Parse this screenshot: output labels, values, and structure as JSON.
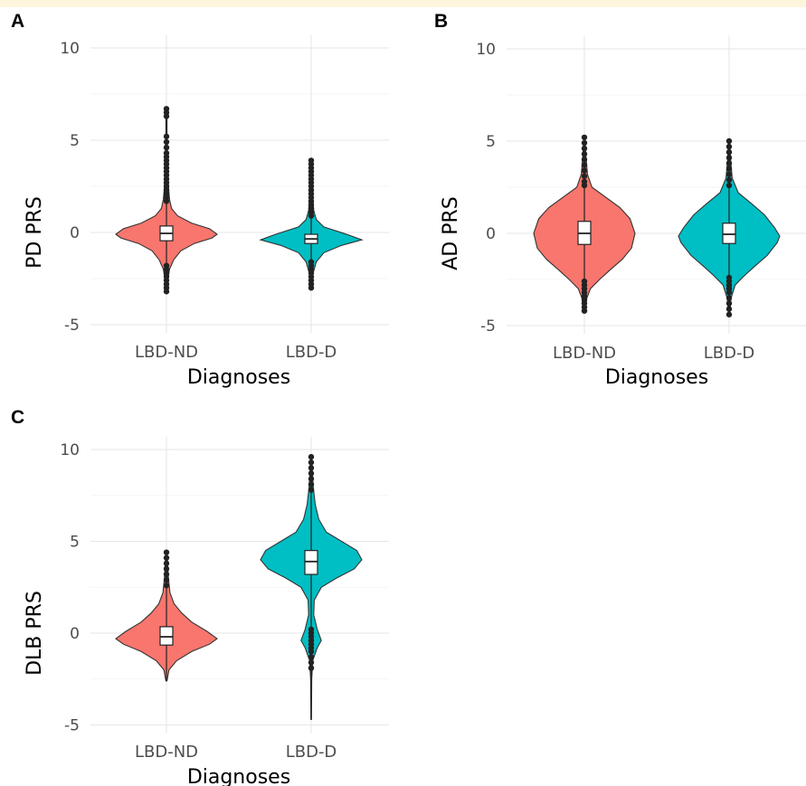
{
  "chart_data": [
    {
      "panel": "A",
      "type": "violin",
      "xlabel": "Diagnoses",
      "ylabel": "PD PRS",
      "ylim": [
        -5,
        10
      ],
      "yticks": [
        -5,
        0,
        5,
        10
      ],
      "grid": true,
      "categories": [
        "LBD-ND",
        "LBD-D"
      ],
      "colors": [
        "#F8766D",
        "#00BFC4"
      ],
      "groups": [
        {
          "name": "LBD-ND",
          "quartiles": [
            -0.45,
            -0.05,
            0.35
          ],
          "whisker_range": [
            -1.6,
            1.5
          ],
          "data_range": [
            -3.2,
            6.7
          ],
          "outliers": [
            6.7,
            6.5,
            6.3,
            5.2,
            4.9,
            4.6,
            4.3,
            4.1,
            3.9,
            3.7,
            3.5,
            3.3,
            3.1,
            2.9,
            2.7,
            2.5,
            2.3,
            2.1,
            1.9,
            1.7,
            -1.8,
            -2.0,
            -2.2,
            -2.4,
            -2.6,
            -2.8,
            -3.0,
            -3.2
          ],
          "density": [
            [
              -3.2,
              0.01
            ],
            [
              -2.5,
              0.03
            ],
            [
              -2.0,
              0.06
            ],
            [
              -1.5,
              0.14
            ],
            [
              -1.0,
              0.28
            ],
            [
              -0.6,
              0.55
            ],
            [
              -0.3,
              0.9
            ],
            [
              -0.1,
              1.0
            ],
            [
              0.2,
              0.85
            ],
            [
              0.5,
              0.5
            ],
            [
              0.9,
              0.22
            ],
            [
              1.3,
              0.1
            ],
            [
              1.8,
              0.06
            ],
            [
              2.5,
              0.04
            ],
            [
              3.5,
              0.03
            ],
            [
              4.5,
              0.02
            ],
            [
              5.5,
              0.01
            ],
            [
              6.7,
              0.01
            ]
          ]
        },
        {
          "name": "LBD-D",
          "quartiles": [
            -0.6,
            -0.35,
            -0.1
          ],
          "whisker_range": [
            -1.4,
            0.8
          ],
          "data_range": [
            -3.0,
            3.9
          ],
          "outliers": [
            3.9,
            3.7,
            3.5,
            3.3,
            3.1,
            2.9,
            2.7,
            2.5,
            2.3,
            2.1,
            1.9,
            1.7,
            1.5,
            1.3,
            1.1,
            0.9,
            -1.6,
            -1.8,
            -2.0,
            -2.2,
            -2.4,
            -2.6,
            -2.8,
            -3.0
          ],
          "density": [
            [
              -3.0,
              0.01
            ],
            [
              -2.2,
              0.04
            ],
            [
              -1.6,
              0.1
            ],
            [
              -1.1,
              0.25
            ],
            [
              -0.7,
              0.6
            ],
            [
              -0.4,
              1.0
            ],
            [
              -0.1,
              0.7
            ],
            [
              0.3,
              0.25
            ],
            [
              0.7,
              0.1
            ],
            [
              1.2,
              0.05
            ],
            [
              2.0,
              0.03
            ],
            [
              3.0,
              0.02
            ],
            [
              3.9,
              0.01
            ]
          ]
        }
      ]
    },
    {
      "panel": "B",
      "type": "violin",
      "xlabel": "Diagnoses",
      "ylabel": "AD PRS",
      "ylim": [
        -5,
        10
      ],
      "yticks": [
        -5,
        0,
        5,
        10
      ],
      "grid": true,
      "categories": [
        "LBD-ND",
        "LBD-D"
      ],
      "colors": [
        "#F8766D",
        "#00BFC4"
      ],
      "groups": [
        {
          "name": "LBD-ND",
          "quartiles": [
            -0.6,
            0.0,
            0.65
          ],
          "whisker_range": [
            -2.4,
            2.5
          ],
          "data_range": [
            -4.2,
            5.2
          ],
          "outliers": [
            5.2,
            4.9,
            4.6,
            4.3,
            4.0,
            3.7,
            3.4,
            3.1,
            2.8,
            2.6,
            -2.6,
            -2.8,
            -3.0,
            -3.2,
            -3.4,
            -3.6,
            -3.8,
            -4.0,
            -4.2
          ],
          "density": [
            [
              -4.2,
              0.01
            ],
            [
              -3.5,
              0.05
            ],
            [
              -3.0,
              0.12
            ],
            [
              -2.5,
              0.3
            ],
            [
              -2.0,
              0.5
            ],
            [
              -1.4,
              0.75
            ],
            [
              -0.8,
              0.93
            ],
            [
              0.0,
              1.0
            ],
            [
              0.8,
              0.9
            ],
            [
              1.4,
              0.7
            ],
            [
              2.0,
              0.4
            ],
            [
              2.5,
              0.15
            ],
            [
              3.2,
              0.06
            ],
            [
              4.2,
              0.03
            ],
            [
              5.2,
              0.01
            ]
          ]
        },
        {
          "name": "LBD-D",
          "quartiles": [
            -0.55,
            -0.05,
            0.55
          ],
          "whisker_range": [
            -2.2,
            2.4
          ],
          "data_range": [
            -4.4,
            5.0
          ],
          "outliers": [
            5.0,
            4.7,
            4.4,
            4.1,
            3.8,
            3.5,
            3.2,
            2.9,
            2.6,
            -2.4,
            -2.6,
            -2.8,
            -3.0,
            -3.2,
            -3.5,
            -3.8,
            -4.1,
            -4.4
          ],
          "density": [
            [
              -4.4,
              0.01
            ],
            [
              -3.5,
              0.04
            ],
            [
              -2.8,
              0.12
            ],
            [
              -2.3,
              0.3
            ],
            [
              -1.8,
              0.5
            ],
            [
              -1.2,
              0.75
            ],
            [
              -0.5,
              0.95
            ],
            [
              -0.15,
              1.0
            ],
            [
              0.3,
              0.9
            ],
            [
              1.0,
              0.7
            ],
            [
              1.6,
              0.45
            ],
            [
              2.2,
              0.18
            ],
            [
              3.0,
              0.06
            ],
            [
              4.0,
              0.03
            ],
            [
              5.0,
              0.01
            ]
          ]
        }
      ]
    },
    {
      "panel": "C",
      "type": "violin",
      "xlabel": "Diagnoses",
      "ylabel": "DLB PRS",
      "ylim": [
        -5,
        10
      ],
      "yticks": [
        -5,
        0,
        5,
        10
      ],
      "grid": true,
      "categories": [
        "LBD-ND",
        "LBD-D"
      ],
      "colors": [
        "#F8766D",
        "#00BFC4"
      ],
      "groups": [
        {
          "name": "LBD-ND",
          "quartiles": [
            -0.65,
            -0.2,
            0.35
          ],
          "whisker_range": [
            -2.6,
            2.5
          ],
          "data_range": [
            -2.6,
            4.4
          ],
          "outliers": [
            4.4,
            4.1,
            3.8,
            3.5,
            3.2,
            2.9,
            2.6
          ],
          "density": [
            [
              -2.6,
              0.01
            ],
            [
              -2.0,
              0.05
            ],
            [
              -1.5,
              0.2
            ],
            [
              -1.0,
              0.5
            ],
            [
              -0.6,
              0.85
            ],
            [
              -0.3,
              1.0
            ],
            [
              0.1,
              0.8
            ],
            [
              0.6,
              0.5
            ],
            [
              1.1,
              0.3
            ],
            [
              1.6,
              0.15
            ],
            [
              2.2,
              0.07
            ],
            [
              3.0,
              0.04
            ],
            [
              4.4,
              0.01
            ]
          ]
        },
        {
          "name": "LBD-D",
          "quartiles": [
            3.2,
            3.9,
            4.5
          ],
          "whisker_range": [
            -4.7,
            7.5
          ],
          "data_range": [
            -4.7,
            9.6
          ],
          "outliers": [
            9.6,
            9.3,
            9.0,
            8.7,
            8.4,
            8.1,
            7.8,
            0.2,
            0.0,
            -0.2,
            -0.4,
            -0.6,
            -0.8,
            -1.0,
            -1.3,
            -1.6,
            -1.9
          ],
          "density": [
            [
              -4.7,
              0.005
            ],
            [
              -2.5,
              0.01
            ],
            [
              -1.5,
              0.03
            ],
            [
              -0.8,
              0.12
            ],
            [
              -0.4,
              0.2
            ],
            [
              0.2,
              0.12
            ],
            [
              1.0,
              0.05
            ],
            [
              1.8,
              0.06
            ],
            [
              2.5,
              0.2
            ],
            [
              3.0,
              0.5
            ],
            [
              3.5,
              0.85
            ],
            [
              4.0,
              1.0
            ],
            [
              4.5,
              0.9
            ],
            [
              5.0,
              0.6
            ],
            [
              5.5,
              0.3
            ],
            [
              6.2,
              0.15
            ],
            [
              7.0,
              0.08
            ],
            [
              8.0,
              0.04
            ],
            [
              9.0,
              0.02
            ],
            [
              9.6,
              0.01
            ]
          ]
        }
      ]
    }
  ]
}
